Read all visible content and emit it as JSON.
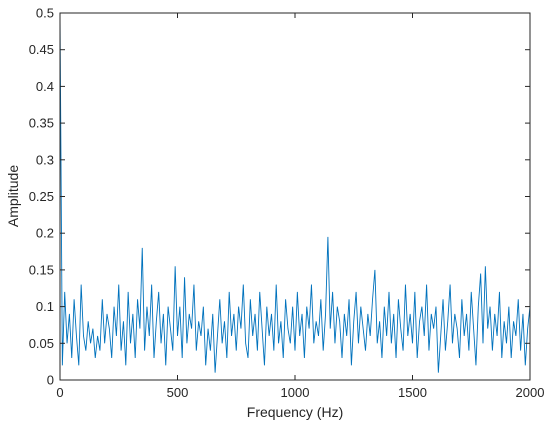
{
  "chart_data": {
    "type": "line",
    "xlabel": "Frequency (Hz)",
    "ylabel": "Amplitude",
    "xlim": [
      0,
      2000
    ],
    "xticks": [
      0,
      500,
      1000,
      1500,
      2000
    ],
    "ylim": [
      0,
      0.5
    ],
    "yticks": [
      0,
      0.05,
      0.1,
      0.15,
      0.2,
      0.25,
      0.3,
      0.35,
      0.4,
      0.45,
      0.5
    ],
    "box": true,
    "series": [
      {
        "color": "#0072bd",
        "x": [
          0,
          10,
          20,
          30,
          40,
          50,
          60,
          70,
          80,
          90,
          100,
          110,
          120,
          130,
          140,
          150,
          160,
          170,
          180,
          190,
          200,
          210,
          220,
          230,
          240,
          250,
          260,
          270,
          280,
          290,
          300,
          310,
          320,
          330,
          340,
          350,
          360,
          370,
          380,
          390,
          400,
          410,
          420,
          430,
          440,
          450,
          460,
          470,
          480,
          490,
          500,
          510,
          520,
          530,
          540,
          550,
          560,
          570,
          580,
          590,
          600,
          610,
          620,
          630,
          640,
          650,
          660,
          670,
          680,
          690,
          700,
          710,
          720,
          730,
          740,
          750,
          760,
          770,
          780,
          790,
          800,
          810,
          820,
          830,
          840,
          850,
          860,
          870,
          880,
          890,
          900,
          910,
          920,
          930,
          940,
          950,
          960,
          970,
          980,
          990,
          1000,
          1010,
          1020,
          1030,
          1040,
          1050,
          1060,
          1070,
          1080,
          1090,
          1100,
          1110,
          1120,
          1130,
          1140,
          1150,
          1160,
          1170,
          1180,
          1190,
          1200,
          1210,
          1220,
          1230,
          1240,
          1250,
          1260,
          1270,
          1280,
          1290,
          1300,
          1310,
          1320,
          1330,
          1340,
          1350,
          1360,
          1370,
          1380,
          1390,
          1400,
          1410,
          1420,
          1430,
          1440,
          1450,
          1460,
          1470,
          1480,
          1490,
          1500,
          1510,
          1520,
          1530,
          1540,
          1550,
          1560,
          1570,
          1580,
          1590,
          1600,
          1610,
          1620,
          1630,
          1640,
          1650,
          1660,
          1670,
          1680,
          1690,
          1700,
          1710,
          1720,
          1730,
          1740,
          1750,
          1760,
          1770,
          1780,
          1790,
          1800,
          1810,
          1820,
          1830,
          1840,
          1850,
          1860,
          1870,
          1880,
          1890,
          1900,
          1910,
          1920,
          1930,
          1940,
          1950,
          1960,
          1970,
          1980,
          1990,
          2000
        ],
        "values": [
          0.5,
          0.02,
          0.12,
          0.05,
          0.09,
          0.03,
          0.11,
          0.06,
          0.02,
          0.13,
          0.06,
          0.04,
          0.08,
          0.05,
          0.07,
          0.03,
          0.06,
          0.04,
          0.11,
          0.05,
          0.09,
          0.07,
          0.03,
          0.1,
          0.06,
          0.13,
          0.04,
          0.08,
          0.02,
          0.12,
          0.05,
          0.09,
          0.03,
          0.11,
          0.07,
          0.18,
          0.04,
          0.1,
          0.06,
          0.13,
          0.03,
          0.08,
          0.12,
          0.05,
          0.09,
          0.02,
          0.1,
          0.07,
          0.04,
          0.155,
          0.06,
          0.1,
          0.03,
          0.14,
          0.05,
          0.09,
          0.07,
          0.13,
          0.04,
          0.08,
          0.06,
          0.1,
          0.02,
          0.07,
          0.04,
          0.09,
          0.01,
          0.06,
          0.11,
          0.05,
          0.08,
          0.03,
          0.12,
          0.06,
          0.09,
          0.04,
          0.1,
          0.07,
          0.13,
          0.05,
          0.03,
          0.11,
          0.06,
          0.09,
          0.04,
          0.12,
          0.07,
          0.02,
          0.1,
          0.06,
          0.09,
          0.04,
          0.13,
          0.05,
          0.08,
          0.03,
          0.11,
          0.07,
          0.05,
          0.1,
          0.04,
          0.12,
          0.06,
          0.09,
          0.03,
          0.1,
          0.07,
          0.13,
          0.05,
          0.08,
          0.06,
          0.11,
          0.04,
          0.09,
          0.195,
          0.07,
          0.12,
          0.05,
          0.1,
          0.08,
          0.03,
          0.09,
          0.06,
          0.11,
          0.02,
          0.08,
          0.12,
          0.05,
          0.1,
          0.07,
          0.04,
          0.09,
          0.06,
          0.11,
          0.15,
          0.05,
          0.08,
          0.03,
          0.1,
          0.06,
          0.12,
          0.05,
          0.09,
          0.03,
          0.11,
          0.07,
          0.04,
          0.13,
          0.06,
          0.09,
          0.05,
          0.12,
          0.03,
          0.08,
          0.1,
          0.06,
          0.13,
          0.04,
          0.09,
          0.07,
          0.1,
          0.01,
          0.06,
          0.11,
          0.04,
          0.08,
          0.13,
          0.05,
          0.09,
          0.07,
          0.03,
          0.11,
          0.06,
          0.09,
          0.04,
          0.12,
          0.07,
          0.02,
          0.1,
          0.145,
          0.05,
          0.155,
          0.07,
          0.1,
          0.04,
          0.09,
          0.06,
          0.12,
          0.03,
          0.08,
          0.05,
          0.1,
          0.03,
          0.08,
          0.06,
          0.11,
          0.04,
          0.09,
          0.02,
          0.07,
          0.1
        ]
      }
    ]
  }
}
